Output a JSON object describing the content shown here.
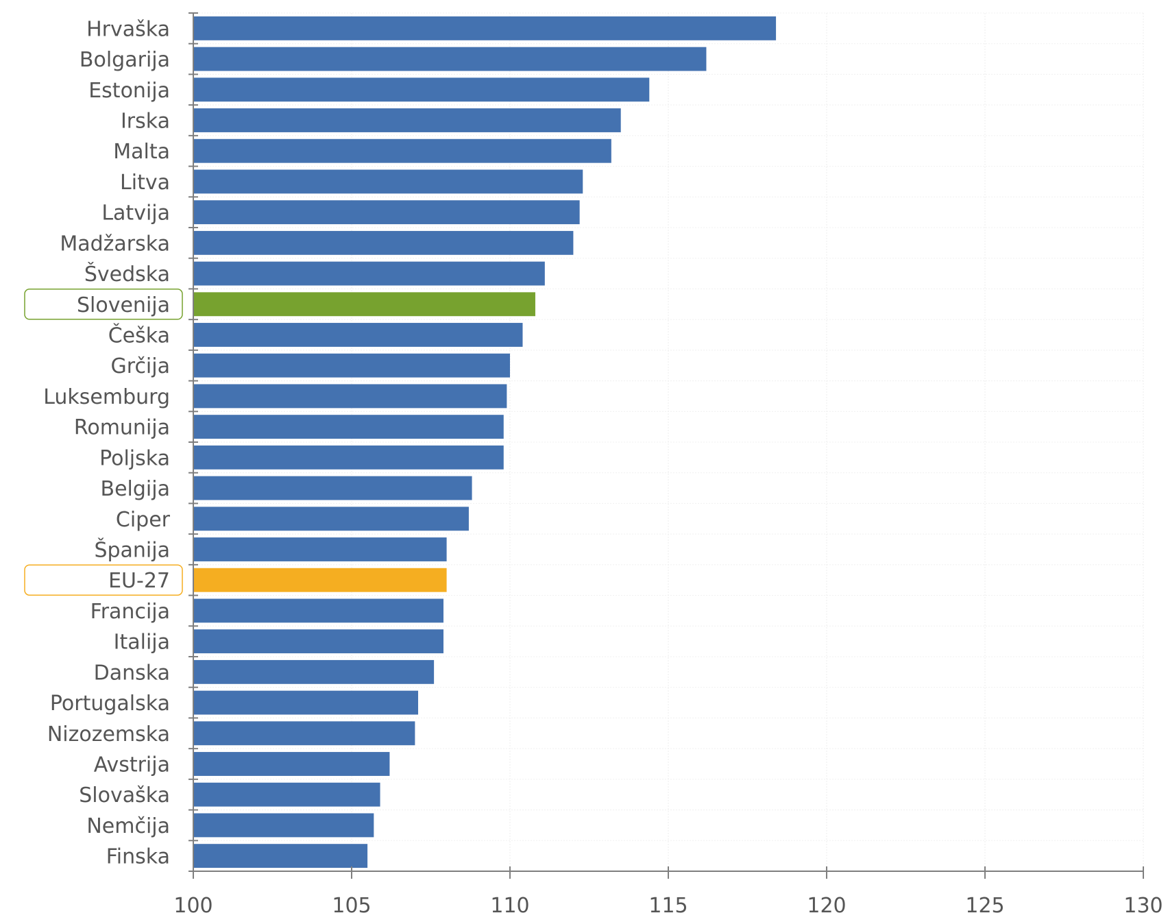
{
  "chart_data": {
    "type": "bar",
    "orientation": "horizontal",
    "title": "",
    "xlabel": "",
    "ylabel": "",
    "xlim": [
      100,
      130
    ],
    "x_ticks": [
      100,
      105,
      110,
      115,
      120,
      125,
      130
    ],
    "grid": true,
    "legend": "none",
    "categories": [
      "Hrvaška",
      "Bolgarija",
      "Estonija",
      "Irska",
      "Malta",
      "Litva",
      "Latvija",
      "Madžarska",
      "Švedska",
      "Slovenija",
      "Češka",
      "Grčija",
      "Luksemburg",
      "Romunija",
      "Poljska",
      "Belgija",
      "Ciper",
      "Španija",
      "EU-27",
      "Francija",
      "Italija",
      "Danska",
      "Portugalska",
      "Nizozemska",
      "Avstrija",
      "Slovaška",
      "Nemčija",
      "Finska"
    ],
    "values": [
      118.4,
      116.2,
      114.4,
      113.5,
      113.2,
      112.3,
      112.2,
      112.0,
      111.1,
      110.8,
      110.4,
      110.0,
      109.9,
      109.8,
      109.8,
      108.8,
      108.7,
      108.0,
      108.0,
      107.9,
      107.9,
      107.6,
      107.1,
      107.0,
      106.2,
      105.9,
      105.7,
      105.5
    ],
    "highlighted": [
      "Slovenija",
      "EU-27"
    ],
    "colors": {
      "default": "#4472B0",
      "Slovenija": "#77A22F",
      "EU-27": "#F5AE21"
    }
  }
}
